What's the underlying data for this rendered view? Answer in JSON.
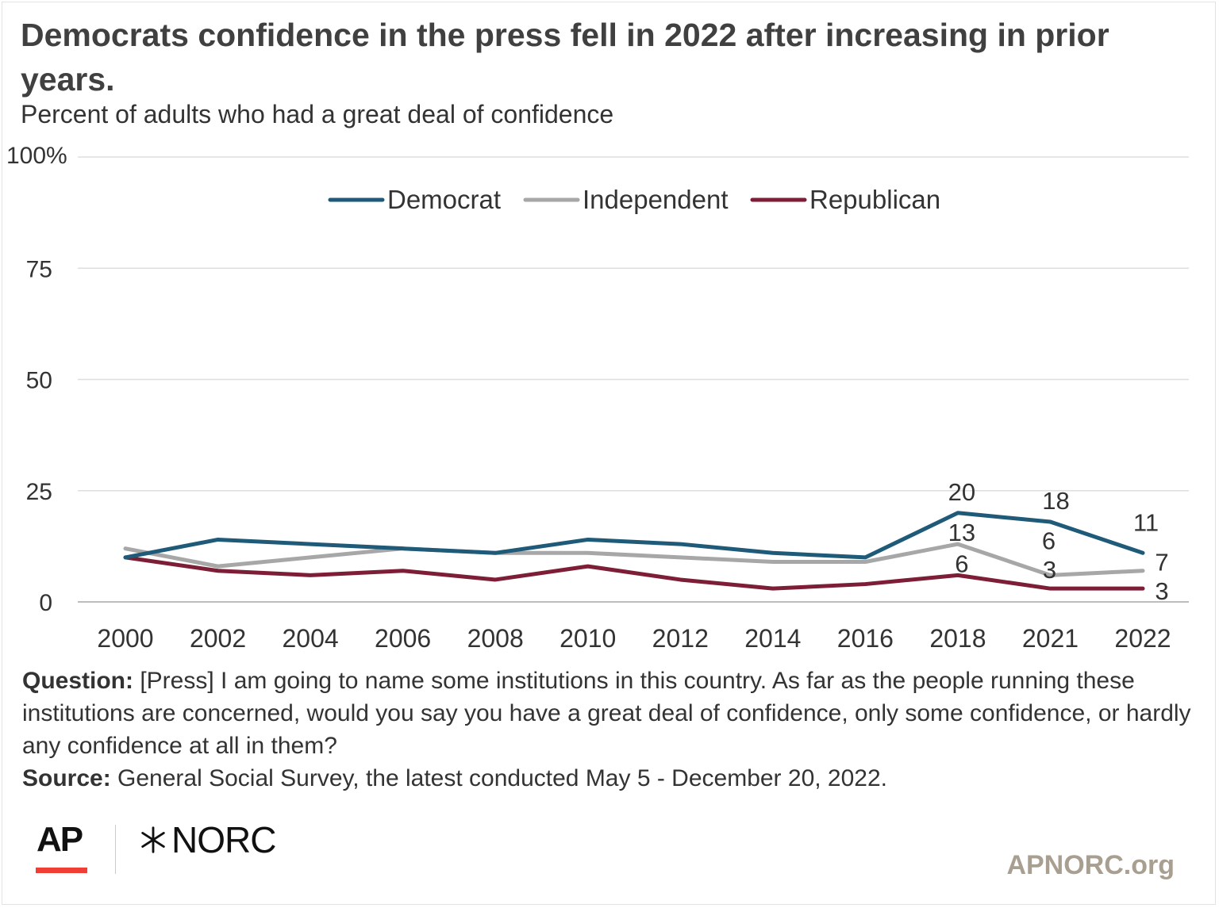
{
  "header": {
    "title": "Democrats confidence in the press fell in 2022 after increasing in prior years.",
    "subtitle": "Percent of adults who had a great deal of confidence"
  },
  "chart_data": {
    "type": "line",
    "categories": [
      "2000",
      "2002",
      "2004",
      "2006",
      "2008",
      "2010",
      "2012",
      "2014",
      "2016",
      "2018",
      "2021",
      "2022"
    ],
    "y_ticks": [
      "100%",
      "75",
      "50",
      "25",
      "0"
    ],
    "y_tick_values": [
      100,
      75,
      50,
      25,
      0
    ],
    "ylim": [
      0,
      100
    ],
    "grid": true,
    "legend_position": "top-center",
    "series": [
      {
        "name": "Democrat",
        "color": "#1f5a78",
        "values": [
          10,
          14,
          13,
          12,
          11,
          14,
          13,
          11,
          10,
          20,
          18,
          11
        ],
        "labels": {
          "9": "20",
          "10": "18",
          "11": "11"
        }
      },
      {
        "name": "Independent",
        "color": "#a7a7a7",
        "values": [
          12,
          8,
          10,
          12,
          11,
          11,
          10,
          9,
          9,
          13,
          6,
          7
        ],
        "labels": {
          "9": "13",
          "10": "6",
          "11": "7"
        }
      },
      {
        "name": "Republican",
        "color": "#7d1e36",
        "values": [
          10,
          7,
          6,
          7,
          5,
          8,
          5,
          3,
          4,
          6,
          3,
          3
        ],
        "labels": {
          "9": "6",
          "10": "3",
          "11": "3"
        }
      }
    ]
  },
  "footnote": {
    "question_label": "Question:",
    "question_text": " [Press] I am going to name some institutions in this country. As far as the people running these institutions are concerned, would you say you have a great deal of confidence, only some confidence, or hardly any confidence at all in them?",
    "source_label": "Source:",
    "source_text": " General Social Survey, the latest conducted May 5 - December 20, 2022."
  },
  "branding": {
    "ap_logo": "AP",
    "norc_logo": "NORC",
    "site": "APNORC.org",
    "ap_accent_color": "#ef3e36"
  }
}
